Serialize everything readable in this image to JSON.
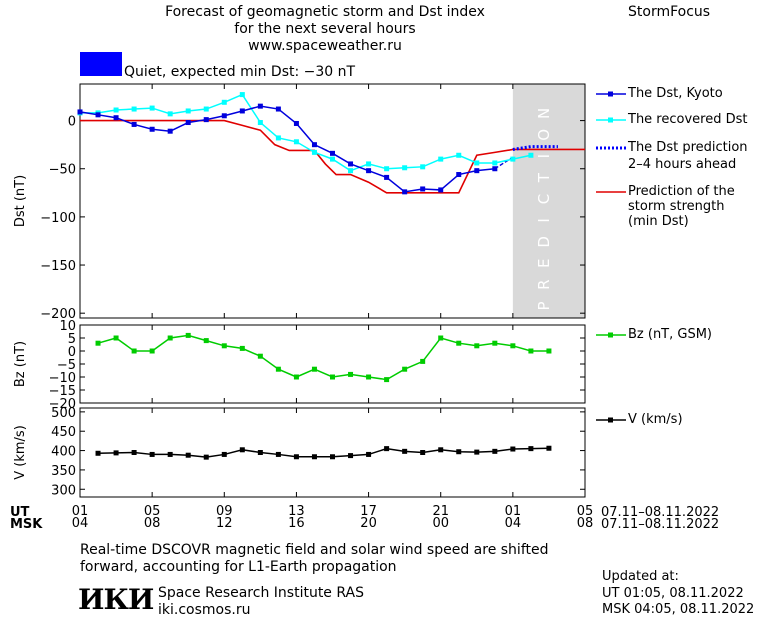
{
  "header": {
    "title_line1": "Forecast of geomagnetic storm and Dst index",
    "title_line2": "for the next several hours",
    "site": "www.spaceweather.ru",
    "brand": "StormFocus",
    "status_text": "Quiet, expected min Dst: −30 nT",
    "status_color": "#0000ff"
  },
  "legend": {
    "dst_kyoto": "The Dst, Kyoto",
    "recovered": "The recovered Dst",
    "prediction_line1": "The Dst prediction",
    "prediction_line2": "2–4 hours ahead",
    "strength_line1": "Prediction of the",
    "strength_line2": "storm strength",
    "strength_line3": "(min Dst)",
    "bz": "Bz (nT, GSM)",
    "v": "V (km/s)"
  },
  "prediction_label": "PREDICTION",
  "time_axis": {
    "ut_label": "UT",
    "msk_label": "MSK",
    "ut_ticks": [
      "01",
      "05",
      "09",
      "13",
      "17",
      "21",
      "01",
      "05"
    ],
    "msk_ticks": [
      "04",
      "08",
      "12",
      "16",
      "20",
      "00",
      "04",
      "08"
    ],
    "date_range_ut": "07.11–08.11.2022",
    "date_range_msk": "07.11–08.11.2022"
  },
  "footer": {
    "note_line1": "Real-time DSCOVR magnetic field and solar wind speed are shifted",
    "note_line2": "forward, accounting for L1-Earth propagation",
    "logo": "ИКИ",
    "institute": "Space Research Institute RAS",
    "url": "iki.cosmos.ru",
    "updated_label": "Updated at:",
    "updated_ut": "UT   01:05, 08.11.2022",
    "updated_msk": "MSK 04:05, 08.11.2022"
  },
  "chart_data": [
    {
      "type": "line",
      "ylabel": "Dst (nT)",
      "xlim": [
        0,
        28
      ],
      "ylim": [
        -205,
        38
      ],
      "yticks": [
        0,
        -50,
        -100,
        -150,
        -200
      ],
      "prediction_start": 24,
      "series": [
        {
          "name": "The Dst, Kyoto",
          "color": "#0000dd",
          "x": [
            0,
            1,
            2,
            3,
            4,
            5,
            6,
            7,
            8,
            9,
            10,
            11,
            12,
            13,
            14,
            15,
            16,
            17,
            18,
            19,
            20,
            21,
            22,
            23
          ],
          "y": [
            9,
            6,
            3,
            -4,
            -9,
            -11,
            -2,
            1,
            5,
            10,
            15,
            12,
            -3,
            -25,
            -34,
            -45,
            -52,
            -59,
            -74,
            -71,
            -72,
            -56,
            -52,
            -50
          ]
        },
        {
          "name": "The Dst, Kyoto",
          "color": "#0000dd",
          "x": [
            23,
            24
          ],
          "y": [
            -50,
            -38
          ]
        },
        {
          "name": "The recovered Dst",
          "color": "#00ffff",
          "x": [
            0,
            1,
            2,
            3,
            4,
            5,
            6,
            7,
            8,
            9,
            10,
            11,
            12,
            13,
            14,
            15,
            16,
            17,
            18,
            19,
            20,
            21,
            22,
            23,
            24,
            25
          ],
          "y": [
            8,
            8,
            11,
            12,
            13,
            7,
            10,
            12,
            19,
            27,
            -2,
            -18,
            -22,
            -33,
            -40,
            -52,
            -45,
            -50,
            -49,
            -48,
            -40,
            -36,
            -44,
            -44,
            -40,
            -36
          ]
        },
        {
          "name": "The Dst prediction 2–4 hours ahead",
          "color": "#0000ff",
          "x": [
            24,
            25,
            26.5
          ],
          "y": [
            -30,
            -27,
            -27
          ]
        },
        {
          "name": "Prediction of the storm strength (min Dst)",
          "color": "#e00000",
          "x": [
            0,
            4,
            6,
            8,
            9,
            10,
            10.8,
            11.6,
            12,
            13,
            13.6,
            14.2,
            15,
            16,
            17,
            18,
            19,
            20,
            21,
            22,
            23,
            24,
            25,
            26,
            27,
            28
          ],
          "y": [
            0,
            0,
            0,
            0,
            -5,
            -10,
            -25,
            -31,
            -31,
            -31,
            -45,
            -56,
            -56,
            -64,
            -75,
            -75,
            -75,
            -75,
            -75,
            -36,
            -33,
            -30,
            -30,
            -30,
            -30,
            -30
          ]
        }
      ]
    },
    {
      "type": "line",
      "ylabel": "Bz (nT)",
      "ylim": [
        -20,
        10
      ],
      "yticks": [
        10,
        5,
        0,
        -5,
        -10,
        -15,
        -20
      ],
      "ytick_labels": [
        "10",
        "5",
        "0",
        "−5",
        "−10",
        "−15",
        "−20"
      ],
      "series": [
        {
          "name": "Bz (nT, GSM)",
          "color": "#00cc00",
          "x": [
            1,
            2,
            3,
            4,
            5,
            6,
            7,
            8,
            9,
            10,
            11,
            12,
            13,
            14,
            15,
            16,
            17,
            18,
            19,
            20,
            21,
            22,
            23,
            24,
            25,
            26
          ],
          "y": [
            3,
            5,
            0,
            0,
            5,
            6,
            4,
            2,
            1,
            -2,
            -7,
            -10,
            -7,
            -10,
            -9,
            -10,
            -11,
            -7,
            -4,
            5,
            3,
            2,
            3,
            2,
            0,
            0
          ]
        }
      ]
    },
    {
      "type": "line",
      "ylabel": "V (km/s)",
      "ylim": [
        280,
        510
      ],
      "yticks": [
        500,
        450,
        400,
        350,
        300
      ],
      "series": [
        {
          "name": "V (km/s)",
          "color": "#000000",
          "x": [
            1,
            2,
            3,
            4,
            5,
            6,
            7,
            8,
            9,
            10,
            11,
            12,
            13,
            14,
            15,
            16,
            17,
            18,
            19,
            20,
            21,
            22,
            23,
            24,
            25,
            26
          ],
          "y": [
            393,
            394,
            395,
            390,
            390,
            388,
            383,
            390,
            402,
            395,
            390,
            384,
            384,
            384,
            387,
            390,
            405,
            398,
            395,
            402,
            397,
            396,
            398,
            404,
            405,
            406
          ]
        }
      ]
    }
  ]
}
